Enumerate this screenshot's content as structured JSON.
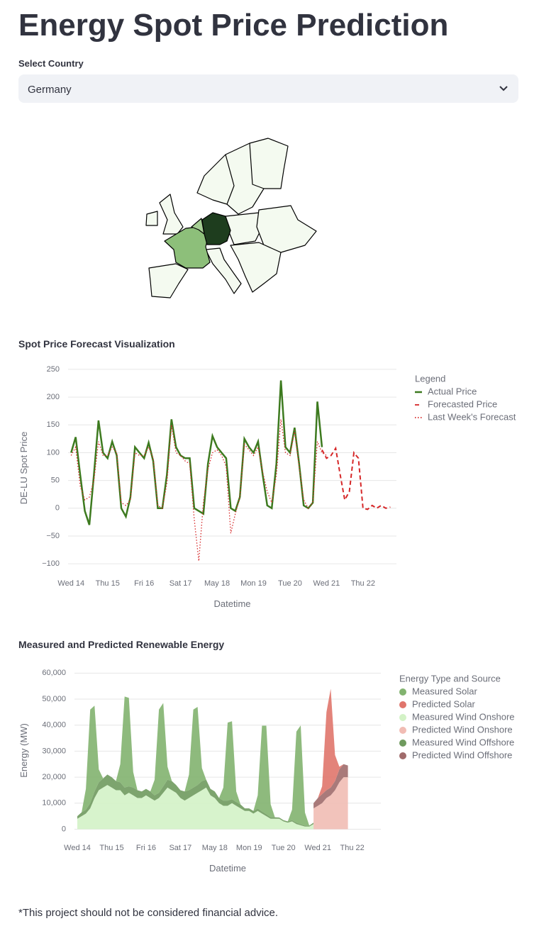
{
  "header": {
    "title": "Energy Spot Price Prediction"
  },
  "select": {
    "label": "Select Country",
    "value": "Germany"
  },
  "footnote": "*This project should not be considered financial advice.",
  "chart_data": [
    {
      "type": "line",
      "title": "Spot Price Forecast Visualization",
      "x_label": "Datetime",
      "y_label": "DE-LU Spot Price",
      "legend_title": "Legend",
      "x": [
        0,
        3,
        6,
        9,
        12,
        15,
        18,
        21,
        24,
        27,
        30,
        33,
        36,
        39,
        42,
        45,
        48,
        51,
        54,
        57,
        60,
        63,
        66,
        69,
        72,
        75,
        78,
        81,
        84,
        87,
        90,
        93,
        96,
        99,
        102,
        105,
        108,
        111,
        114,
        117,
        120,
        123,
        126,
        129,
        132,
        135,
        138,
        141,
        144,
        147,
        150,
        153,
        156,
        159,
        162,
        165,
        168,
        171,
        174,
        177,
        180,
        183,
        186,
        189,
        192,
        195,
        198,
        201,
        204,
        207,
        210
      ],
      "series": [
        {
          "name": "Actual Price",
          "color": "#3d7a1f",
          "dash": "solid",
          "values": [
            100,
            128,
            60,
            -5,
            -30,
            60,
            158,
            100,
            90,
            120,
            95,
            0,
            -15,
            20,
            110,
            100,
            90,
            118,
            85,
            0,
            0,
            60,
            160,
            110,
            95,
            90,
            90,
            0,
            -5,
            -10,
            80,
            130,
            110,
            100,
            90,
            0,
            -5,
            20,
            125,
            110,
            100,
            120,
            60,
            5,
            0,
            80,
            230,
            110,
            100,
            145,
            80,
            5,
            0,
            10,
            192,
            110,
            null,
            null,
            null,
            null,
            null,
            null,
            null,
            null,
            null,
            null,
            null,
            null,
            null,
            null,
            null
          ]
        },
        {
          "name": "Forecasted Price",
          "color": "#d62728",
          "dash": "dash",
          "values": [
            null,
            null,
            null,
            null,
            null,
            null,
            null,
            null,
            null,
            null,
            null,
            null,
            null,
            null,
            null,
            null,
            null,
            null,
            null,
            null,
            null,
            null,
            null,
            null,
            null,
            null,
            null,
            null,
            null,
            null,
            null,
            null,
            null,
            null,
            null,
            null,
            null,
            null,
            null,
            null,
            null,
            null,
            null,
            null,
            null,
            null,
            null,
            null,
            null,
            null,
            null,
            null,
            null,
            null,
            null,
            105,
            90,
            95,
            108,
            60,
            15,
            30,
            100,
            90,
            0,
            -2,
            5,
            0,
            5,
            0,
            2
          ]
        },
        {
          "name": "Last Week's Forecast",
          "color": "#d62728",
          "dash": "dot",
          "values": [
            95,
            110,
            40,
            15,
            20,
            50,
            120,
            95,
            95,
            110,
            100,
            10,
            5,
            15,
            100,
            95,
            95,
            110,
            90,
            5,
            0,
            45,
            150,
            100,
            95,
            85,
            80,
            -20,
            -95,
            10,
            70,
            100,
            105,
            95,
            75,
            -45,
            -10,
            20,
            115,
            105,
            95,
            110,
            65,
            30,
            10,
            60,
            160,
            100,
            95,
            140,
            75,
            15,
            0,
            10,
            120,
            100,
            95,
            null,
            null,
            null,
            null,
            null,
            null,
            null,
            null,
            null,
            null,
            null,
            null,
            null,
            null
          ]
        }
      ],
      "xlim": [
        -2,
        214
      ],
      "ylim": [
        -110,
        255
      ],
      "xticks": [
        {
          "value": 0,
          "label": "Wed 14"
        },
        {
          "value": 24,
          "label": "Thu 15"
        },
        {
          "value": 48,
          "label": "Fri 16"
        },
        {
          "value": 72,
          "label": "Sat 17"
        },
        {
          "value": 96,
          "label": "May 18"
        },
        {
          "value": 120,
          "label": "Mon 19"
        },
        {
          "value": 144,
          "label": "Tue 20"
        },
        {
          "value": 168,
          "label": "Wed 21"
        },
        {
          "value": 192,
          "label": "Thu 22"
        }
      ],
      "yticks": [
        {
          "value": -100,
          "label": "−100"
        },
        {
          "value": -50,
          "label": "−50"
        },
        0,
        50,
        100,
        150,
        200,
        250
      ],
      "grid": true
    },
    {
      "type": "area",
      "stacked": true,
      "title": "Measured and Predicted Renewable Energy",
      "x_label": "Datetime",
      "y_label": "Energy (MW)",
      "legend_title": "Energy Type and Source",
      "x": [
        0,
        3,
        6,
        9,
        12,
        15,
        18,
        21,
        24,
        27,
        30,
        33,
        36,
        39,
        42,
        45,
        48,
        51,
        54,
        57,
        60,
        63,
        66,
        69,
        72,
        75,
        78,
        81,
        84,
        87,
        90,
        93,
        96,
        99,
        102,
        105,
        108,
        111,
        114,
        117,
        120,
        123,
        126,
        129,
        132,
        135,
        138,
        141,
        144,
        147,
        150,
        153,
        156,
        159,
        162,
        165,
        168,
        171,
        174,
        177,
        180,
        183,
        186,
        189
      ],
      "series": [
        {
          "name": "Measured Solar",
          "color": "#82b36f",
          "values": [
            0,
            0,
            8000,
            36000,
            33000,
            5000,
            0,
            0,
            0,
            0,
            7000,
            35000,
            34000,
            6000,
            0,
            0,
            0,
            0,
            6000,
            32000,
            32000,
            5000,
            0,
            0,
            0,
            0,
            6000,
            30000,
            30000,
            5000,
            0,
            0,
            0,
            0,
            5000,
            30000,
            30000,
            4000,
            0,
            0,
            0,
            0,
            5000,
            33000,
            34000,
            5000,
            0,
            0,
            0,
            0,
            4000,
            35000,
            38000,
            5000,
            0,
            0,
            null,
            null,
            null,
            null,
            null,
            null,
            null,
            null
          ]
        },
        {
          "name": "Predicted Solar",
          "color": "#e0756c",
          "values": [
            null,
            null,
            null,
            null,
            null,
            null,
            null,
            null,
            null,
            null,
            null,
            null,
            null,
            null,
            null,
            null,
            null,
            null,
            null,
            null,
            null,
            null,
            null,
            null,
            null,
            null,
            null,
            null,
            null,
            null,
            null,
            null,
            null,
            null,
            null,
            null,
            null,
            null,
            null,
            null,
            null,
            null,
            null,
            null,
            null,
            null,
            null,
            null,
            null,
            null,
            null,
            null,
            null,
            null,
            null,
            0,
            0,
            3000,
            30000,
            38000,
            10000,
            1000,
            0,
            0
          ]
        },
        {
          "name": "Measured Wind Onshore",
          "color": "#d3f2c6",
          "values": [
            4000,
            5000,
            6000,
            8000,
            12000,
            15000,
            16000,
            17000,
            16000,
            15000,
            15000,
            13000,
            14000,
            13000,
            12000,
            12000,
            13000,
            12000,
            11000,
            12000,
            14000,
            16000,
            15000,
            14000,
            12000,
            11000,
            12000,
            13000,
            14000,
            15000,
            16000,
            13000,
            12000,
            10000,
            9000,
            9000,
            10000,
            9000,
            8000,
            7000,
            7000,
            6000,
            7000,
            6000,
            5000,
            4000,
            4000,
            4000,
            3000,
            2500,
            3000,
            2000,
            1500,
            1000,
            1000,
            2000,
            null,
            null,
            null,
            null,
            null,
            null,
            null,
            null
          ]
        },
        {
          "name": "Predicted Wind Onshore",
          "color": "#f1bcb4",
          "values": [
            null,
            null,
            null,
            null,
            null,
            null,
            null,
            null,
            null,
            null,
            null,
            null,
            null,
            null,
            null,
            null,
            null,
            null,
            null,
            null,
            null,
            null,
            null,
            null,
            null,
            null,
            null,
            null,
            null,
            null,
            null,
            null,
            null,
            null,
            null,
            null,
            null,
            null,
            null,
            null,
            null,
            null,
            null,
            null,
            null,
            null,
            null,
            null,
            null,
            null,
            null,
            null,
            null,
            null,
            null,
            8000,
            9000,
            10000,
            12000,
            13000,
            15000,
            18000,
            20000,
            20000
          ]
        },
        {
          "name": "Measured Wind Offshore",
          "color": "#6f9a5e",
          "values": [
            1000,
            1500,
            1500,
            2000,
            2500,
            3000,
            3500,
            4000,
            4000,
            3500,
            3000,
            3000,
            2500,
            3000,
            3000,
            2500,
            2500,
            2500,
            2000,
            2000,
            2500,
            3000,
            3500,
            3000,
            3000,
            3500,
            3000,
            3000,
            3000,
            3500,
            3000,
            2500,
            2500,
            2000,
            2000,
            2000,
            1500,
            1500,
            1500,
            1000,
            1000,
            1000,
            1000,
            800,
            800,
            600,
            600,
            500,
            500,
            500,
            500,
            500,
            400,
            400,
            400,
            500,
            null,
            null,
            null,
            null,
            null,
            null,
            null,
            null
          ]
        },
        {
          "name": "Predicted Wind Offshore",
          "color": "#a06b6b",
          "values": [
            null,
            null,
            null,
            null,
            null,
            null,
            null,
            null,
            null,
            null,
            null,
            null,
            null,
            null,
            null,
            null,
            null,
            null,
            null,
            null,
            null,
            null,
            null,
            null,
            null,
            null,
            null,
            null,
            null,
            null,
            null,
            null,
            null,
            null,
            null,
            null,
            null,
            null,
            null,
            null,
            null,
            null,
            null,
            null,
            null,
            null,
            null,
            null,
            null,
            null,
            null,
            null,
            null,
            null,
            null,
            2000,
            3000,
            3500,
            3000,
            3000,
            3500,
            5000,
            5000,
            4500
          ]
        }
      ],
      "xlim": [
        -2,
        212
      ],
      "ylim": [
        -1500,
        62000
      ],
      "xticks": [
        {
          "value": 0,
          "label": "Wed 14"
        },
        {
          "value": 24,
          "label": "Thu 15"
        },
        {
          "value": 48,
          "label": "Fri 16"
        },
        {
          "value": 72,
          "label": "Sat 17"
        },
        {
          "value": 96,
          "label": "May 18"
        },
        {
          "value": 120,
          "label": "Mon 19"
        },
        {
          "value": 144,
          "label": "Tue 20"
        },
        {
          "value": 168,
          "label": "Wed 21"
        },
        {
          "value": 192,
          "label": "Thu 22"
        }
      ],
      "yticks": [
        0,
        {
          "value": 10000,
          "label": "10,000"
        },
        {
          "value": 20000,
          "label": "20,000"
        },
        {
          "value": 30000,
          "label": "30,000"
        },
        {
          "value": 40000,
          "label": "40,000"
        },
        {
          "value": 50000,
          "label": "50,000"
        },
        {
          "value": 60000,
          "label": "60,000"
        }
      ],
      "grid": true
    }
  ]
}
